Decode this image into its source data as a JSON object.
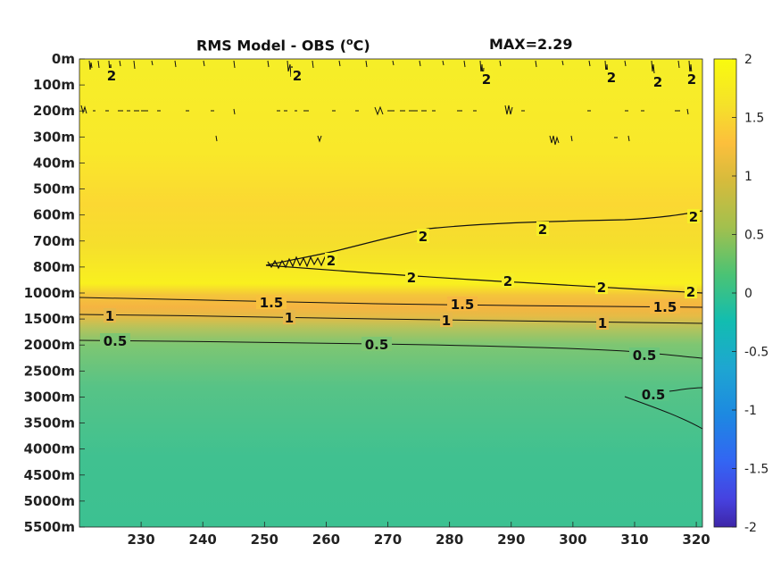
{
  "header": {
    "title_left": "RMS Model - OBS (",
    "title_unit_sup": "o",
    "title_unit_rest": "C)",
    "title_right": "MAX=2.29"
  },
  "chart_data": {
    "type": "heatmap",
    "title": "RMS Model - OBS (oC)  MAX=2.29",
    "x_ticks": [
      "230",
      "240",
      "250",
      "260",
      "270",
      "280",
      "290",
      "300",
      "310",
      "320"
    ],
    "x_tick_values": [
      230,
      240,
      250,
      260,
      270,
      280,
      290,
      300,
      310,
      320
    ],
    "xlim": [
      220,
      321
    ],
    "y_ticks": [
      "0m",
      "100m",
      "200m",
      "300m",
      "400m",
      "500m",
      "600m",
      "700m",
      "800m",
      "1000m",
      "1500m",
      "2000m",
      "2500m",
      "3000m",
      "3500m",
      "4000m",
      "4500m",
      "5000m",
      "5500m"
    ],
    "y_axis": "reversed, non-linear depth levels",
    "colorbar": {
      "ticks": [
        "2",
        "1.5",
        "1",
        "0.5",
        "0",
        "-0.5",
        "-1",
        "-1.5",
        "-2"
      ],
      "range": [
        -2,
        2
      ],
      "colormap": "parula"
    },
    "contour_labels": [
      {
        "text": "2",
        "x": 225,
        "depth": "100m"
      },
      {
        "text": "2",
        "x": 255,
        "depth": "100m"
      },
      {
        "text": "2",
        "x": 287,
        "depth": "100m"
      },
      {
        "text": "2",
        "x": 305,
        "depth": "100m"
      },
      {
        "text": "2",
        "x": 313,
        "depth": "100m"
      },
      {
        "text": "2",
        "x": 319,
        "depth": "100m"
      },
      {
        "text": "2",
        "x": 276,
        "depth": "700m"
      },
      {
        "text": "2",
        "x": 295,
        "depth": "650m"
      },
      {
        "text": "2",
        "x": 320,
        "depth": "600m"
      },
      {
        "text": "2",
        "x": 262,
        "depth": "800m"
      },
      {
        "text": "2",
        "x": 275,
        "depth": "850m"
      },
      {
        "text": "2",
        "x": 290,
        "depth": "900m"
      },
      {
        "text": "2",
        "x": 306,
        "depth": "950m"
      },
      {
        "text": "2",
        "x": 320,
        "depth": "1000m"
      },
      {
        "text": "1.5",
        "x": 252,
        "depth": "1100m"
      },
      {
        "text": "1.5",
        "x": 284,
        "depth": "1150m"
      },
      {
        "text": "1.5",
        "x": 314,
        "depth": "1200m"
      },
      {
        "text": "1",
        "x": 225,
        "depth": "1450m"
      },
      {
        "text": "1",
        "x": 254,
        "depth": "1500m"
      },
      {
        "text": "1",
        "x": 280,
        "depth": "1500m"
      },
      {
        "text": "1",
        "x": 305,
        "depth": "1550m"
      },
      {
        "text": "0.5",
        "x": 226,
        "depth": "1900m"
      },
      {
        "text": "0.5",
        "x": 269,
        "depth": "2000m"
      },
      {
        "text": "0.5",
        "x": 312,
        "depth": "2200m"
      },
      {
        "text": "0.5",
        "x": 313,
        "depth": "2900m"
      }
    ],
    "field_summary": {
      "0m-800m": 2.0,
      "800m-1000m": 1.95,
      "1000m-1500m": 1.3,
      "1500m-2000m": 0.8,
      "2000m-3000m": 0.5,
      "3000m-5500m": 0.35
    }
  }
}
